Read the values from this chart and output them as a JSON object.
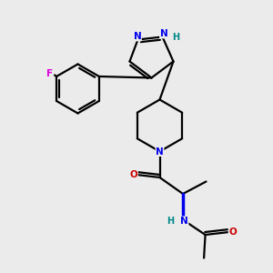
{
  "bg_color": "#ebebeb",
  "bond_color": "#000000",
  "N_color": "#0000ee",
  "O_color": "#cc0000",
  "F_color": "#dd00dd",
  "H_color": "#008888",
  "line_width": 1.6,
  "figsize": [
    3.0,
    3.0
  ],
  "dpi": 100,
  "xlim": [
    0,
    10
  ],
  "ylim": [
    0,
    10
  ]
}
